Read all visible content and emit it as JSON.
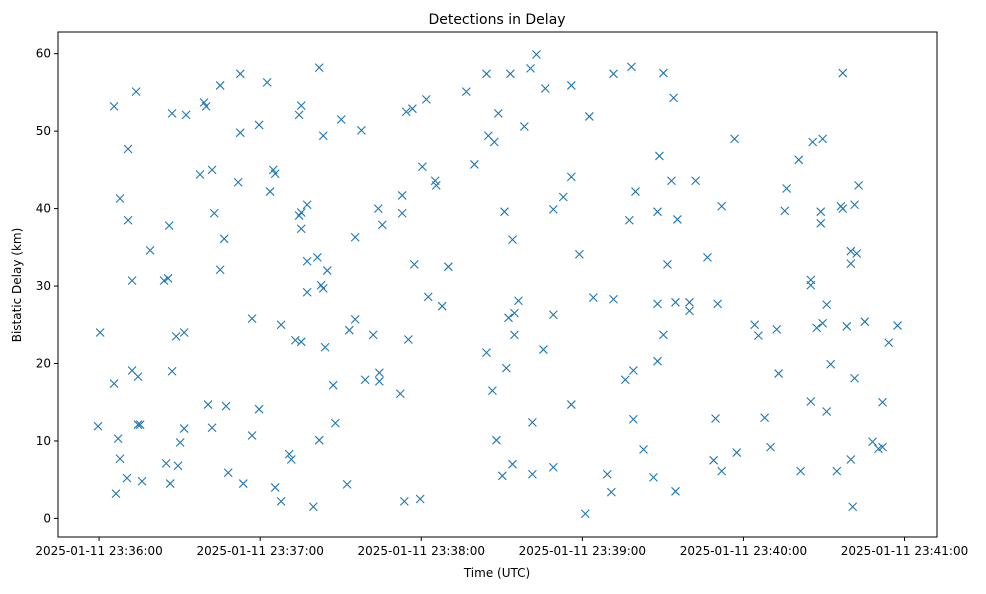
{
  "chart_data": {
    "type": "scatter",
    "title": "Detections in Delay",
    "xlabel": "Time (UTC)",
    "ylabel": "Bistatic Delay (km)",
    "x_units": "seconds since 2025-01-11 23:36:00",
    "xlim": [
      -15.3,
      312.1
    ],
    "ylim": [
      -2.4,
      62.8
    ],
    "grid": false,
    "marker": "x",
    "color": "#1f77b4",
    "x_ticks": [
      {
        "value": 0,
        "label": "2025-01-11 23:36:00"
      },
      {
        "value": 60,
        "label": "2025-01-11 23:37:00"
      },
      {
        "value": 120,
        "label": "2025-01-11 23:38:00"
      },
      {
        "value": 180,
        "label": "2025-01-11 23:39:00"
      },
      {
        "value": 240,
        "label": "2025-01-11 23:40:00"
      },
      {
        "value": 300,
        "label": "2025-01-11 23:41:00"
      }
    ],
    "y_ticks": [
      {
        "value": 0,
        "label": "0"
      },
      {
        "value": 10,
        "label": "10"
      },
      {
        "value": 20,
        "label": "20"
      },
      {
        "value": 30,
        "label": "30"
      },
      {
        "value": 40,
        "label": "40"
      },
      {
        "value": 50,
        "label": "50"
      },
      {
        "value": 60,
        "label": "60"
      }
    ],
    "x": [
      -0.4,
      0.4,
      5.6,
      5.6,
      6.3,
      7.1,
      7.8,
      7.8,
      10.4,
      10.8,
      10.8,
      12.3,
      12.3,
      13.8,
      14.5,
      14.5,
      15.3,
      16.0,
      19.0,
      24.2,
      25.0,
      25.7,
      26.1,
      26.5,
      27.2,
      27.2,
      28.7,
      29.4,
      30.2,
      31.7,
      31.7,
      32.4,
      37.6,
      39.1,
      39.9,
      40.6,
      42.1,
      42.1,
      42.9,
      45.1,
      45.1,
      46.6,
      47.3,
      48.1,
      51.8,
      52.6,
      52.6,
      53.7,
      57.0,
      57.0,
      59.6,
      59.6,
      62.6,
      63.7,
      64.9,
      65.6,
      65.6,
      67.8,
      67.8,
      70.8,
      71.6,
      73.1,
      74.5,
      75.3,
      74.5,
      75.3,
      75.3,
      75.3,
      77.5,
      77.5,
      77.5,
      79.8,
      81.3,
      82.0,
      82.0,
      82.7,
      83.5,
      83.5,
      85.0,
      84.2,
      87.2,
      88.0,
      90.2,
      92.4,
      93.2,
      95.4,
      95.4,
      97.7,
      99.1,
      102.1,
      104.0,
      104.4,
      104.4,
      105.5,
      112.2,
      112.9,
      112.9,
      113.7,
      114.4,
      115.2,
      116.7,
      117.4,
      119.6,
      120.4,
      121.9,
      122.6,
      125.2,
      125.6,
      127.8,
      130.1,
      136.8,
      139.8,
      144.3,
      144.3,
      145.0,
      146.5,
      147.2,
      148.0,
      148.7,
      150.2,
      151.0,
      151.7,
      152.5,
      153.2,
      154.0,
      154.0,
      154.7,
      154.7,
      156.2,
      158.4,
      160.7,
      161.4,
      161.4,
      162.9,
      165.5,
      166.2,
      169.2,
      169.2,
      169.2,
      172.9,
      175.9,
      175.9,
      175.9,
      178.9,
      181.1,
      182.6,
      184.1,
      189.3,
      190.8,
      191.6,
      191.6,
      196.0,
      197.5,
      198.3,
      199.0,
      199.0,
      199.8,
      202.8,
      206.5,
      208.0,
      208.0,
      208.7,
      208.0,
      210.2,
      210.2,
      211.7,
      213.2,
      214.0,
      214.7,
      214.7,
      215.4,
      219.9,
      219.9,
      222.2,
      226.6,
      228.9,
      229.6,
      230.4,
      231.9,
      231.9,
      236.7,
      237.5,
      244.2,
      245.6,
      247.9,
      250.1,
      252.4,
      253.1,
      255.4,
      256.1,
      260.6,
      261.3,
      265.1,
      265.1,
      265.1,
      265.8,
      267.3,
      268.8,
      268.8,
      269.5,
      269.5,
      271.0,
      271.0,
      272.5,
      274.8,
      276.3,
      277.0,
      277.0,
      278.5,
      280.0,
      280.0,
      280.0,
      280.7,
      281.4,
      281.4,
      282.2,
      282.9,
      285.2,
      288.1,
      290.3,
      291.8,
      291.8,
      294.1,
      297.4
    ],
    "y": [
      11.9,
      24.0,
      53.2,
      17.4,
      3.2,
      10.3,
      41.3,
      7.7,
      5.2,
      47.7,
      38.5,
      30.7,
      19.1,
      55.1,
      18.3,
      12.1,
      12.1,
      4.8,
      34.6,
      30.7,
      7.1,
      31.0,
      37.8,
      4.5,
      52.3,
      19.0,
      23.5,
      6.8,
      9.8,
      24.0,
      11.6,
      52.1,
      44.4,
      53.7,
      53.2,
      14.7,
      45.0,
      11.7,
      39.4,
      55.9,
      32.1,
      36.1,
      14.5,
      5.9,
      43.4,
      57.4,
      49.8,
      4.5,
      25.8,
      10.7,
      50.8,
      14.1,
      56.3,
      42.2,
      45.0,
      44.5,
      4.0,
      25.0,
      2.2,
      8.3,
      7.6,
      23.0,
      52.1,
      53.3,
      39.1,
      39.5,
      37.4,
      22.8,
      40.5,
      33.2,
      29.2,
      1.5,
      33.7,
      58.2,
      10.1,
      30.1,
      29.7,
      49.4,
      32.0,
      22.1,
      17.2,
      12.3,
      51.5,
      4.4,
      24.3,
      25.7,
      36.3,
      50.1,
      17.9,
      23.7,
      40.0,
      18.8,
      17.7,
      37.9,
      16.1,
      41.7,
      39.4,
      2.2,
      52.5,
      23.1,
      52.9,
      32.8,
      2.5,
      45.4,
      54.1,
      28.6,
      43.6,
      43.0,
      27.4,
      32.5,
      55.1,
      45.7,
      57.4,
      21.4,
      49.4,
      16.5,
      48.6,
      10.1,
      52.3,
      5.5,
      39.6,
      19.4,
      25.9,
      57.4,
      36.0,
      7.0,
      26.5,
      23.7,
      28.1,
      50.6,
      58.1,
      12.4,
      5.7,
      59.9,
      21.8,
      55.5,
      39.9,
      26.3,
      6.6,
      41.5,
      55.9,
      44.1,
      14.7,
      34.1,
      0.6,
      51.9,
      28.5,
      5.7,
      3.4,
      57.4,
      28.3,
      17.9,
      38.5,
      58.3,
      19.1,
      12.8,
      42.2,
      8.9,
      5.3,
      20.3,
      39.6,
      46.8,
      27.7,
      57.5,
      23.7,
      32.8,
      43.6,
      54.3,
      27.9,
      3.5,
      38.6,
      27.9,
      26.8,
      43.6,
      33.7,
      7.5,
      12.9,
      27.7,
      40.3,
      6.1,
      49.0,
      8.5,
      25.0,
      23.6,
      13.0,
      9.2,
      24.4,
      18.7,
      39.7,
      42.6,
      46.3,
      6.1,
      30.8,
      30.1,
      15.1,
      48.6,
      24.6,
      39.6,
      38.1,
      25.2,
      49.0,
      27.6,
      13.8,
      19.9,
      6.1,
      40.3,
      40.0,
      57.5,
      24.8,
      7.6,
      34.5,
      32.9,
      1.5,
      40.5,
      18.1,
      34.2,
      43.0,
      25.4,
      9.9,
      9.0,
      9.2,
      15.0,
      22.7,
      24.9
    ]
  }
}
